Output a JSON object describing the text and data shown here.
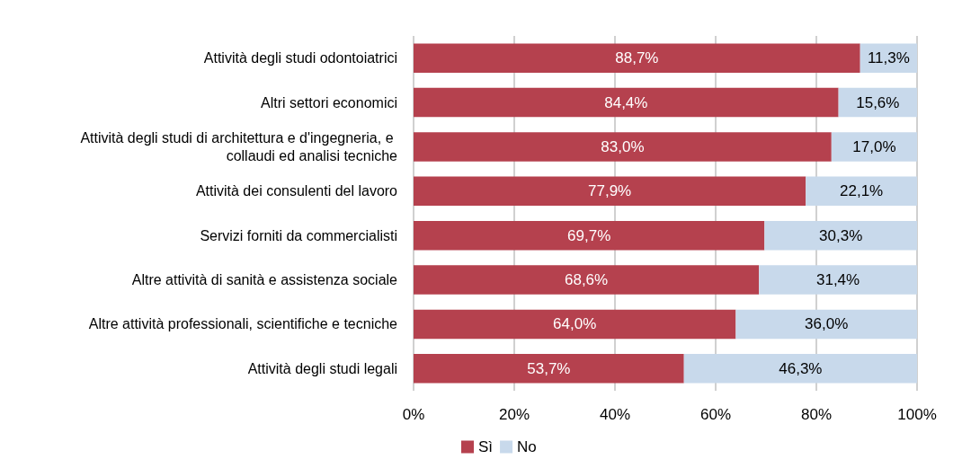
{
  "chart_data": {
    "type": "bar",
    "orientation": "horizontal",
    "stacked": true,
    "categories": [
      "Attività degli studi odontoiatrici",
      "Altri settori economici",
      "Attività degli studi di architettura e d'ingegneria, e collaudi ed analisi tecniche",
      "Attività dei consulenti del lavoro",
      "Servizi forniti da commercialisti",
      "Altre attività di sanità e assistenza sociale",
      "Altre attività professionali, scientifiche e tecniche",
      "Attività degli studi legali"
    ],
    "series": [
      {
        "name": "Sì",
        "color": "#b5414e",
        "values": [
          88.7,
          84.4,
          83.0,
          77.9,
          69.7,
          68.6,
          64.0,
          53.7
        ],
        "value_labels": [
          "88,7%",
          "84,4%",
          "83,0%",
          "77,9%",
          "69,7%",
          "68,6%",
          "64,0%",
          "53,7%"
        ]
      },
      {
        "name": "No",
        "color": "#c8d9eb",
        "values": [
          11.3,
          15.6,
          17.0,
          22.1,
          30.3,
          31.4,
          36.0,
          46.3
        ],
        "value_labels": [
          "11,3%",
          "15,6%",
          "17,0%",
          "22,1%",
          "30,3%",
          "31,4%",
          "36,0%",
          "46,3%"
        ]
      }
    ],
    "xlim": [
      0,
      100
    ],
    "xticks": [
      {
        "value": 0,
        "label": "0%"
      },
      {
        "value": 20,
        "label": "20%"
      },
      {
        "value": 40,
        "label": "40%"
      },
      {
        "value": 60,
        "label": "60%"
      },
      {
        "value": 80,
        "label": "80%"
      },
      {
        "value": 100,
        "label": "100%"
      }
    ],
    "grid": "x",
    "legend": "bottom"
  }
}
